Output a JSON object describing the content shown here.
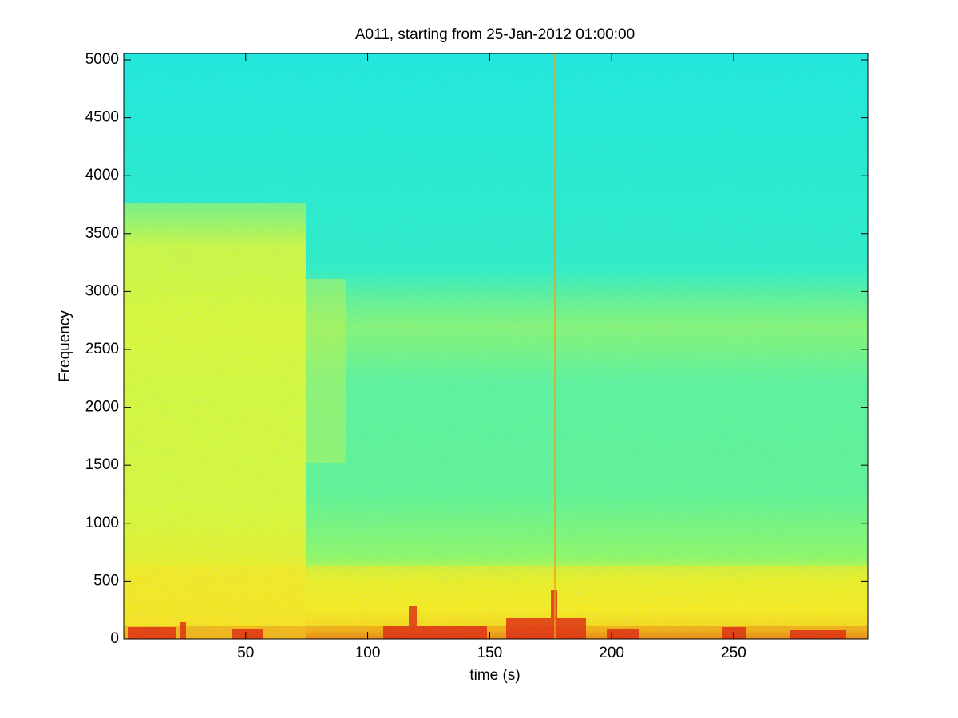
{
  "chart_data": {
    "type": "spectrogram",
    "title": "A011, starting from 25-Jan-2012 01:00:00",
    "x_label": "time (s)",
    "y_label": "Frequency",
    "xlim": [
      0,
      305
    ],
    "xticks": [
      50,
      100,
      150,
      200,
      250
    ],
    "ylim": [
      0,
      5055
    ],
    "yticks": [
      0,
      500,
      1000,
      1500,
      2000,
      2500,
      3000,
      3500,
      4000,
      4500,
      5000
    ]
  }
}
